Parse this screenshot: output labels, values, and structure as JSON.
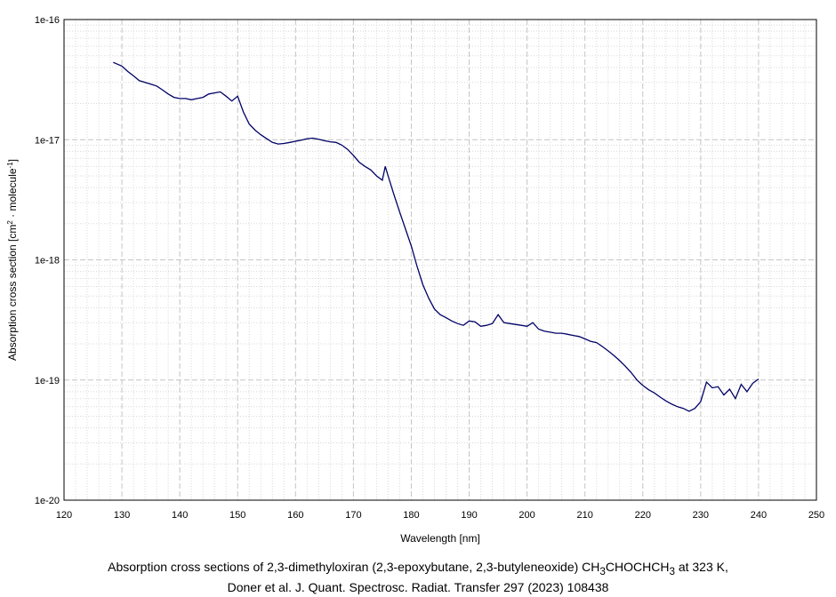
{
  "caption": {
    "line1_prefix": "Absorption cross sections of 2,3-dimethyloxiran (2,3-epoxybutane, 2,3-butyleneoxide) CH",
    "sub1": "3",
    "line1_mid": "CHOCHCH",
    "sub2": "3",
    "line1_suffix": " at 323 K,",
    "line2": "Doner et al. J. Quant. Spectrosc. Radiat. Transfer 297 (2023) 108438"
  },
  "chart_data": {
    "type": "line",
    "title": "",
    "xlabel": "Wavelength [nm]",
    "ylabel_prefix": "Absorption cross section [cm",
    "ylabel_sup1": "2",
    "ylabel_mid": " · molecule",
    "ylabel_sup2": "-1",
    "ylabel_suffix": "]",
    "xlim": [
      120,
      250
    ],
    "ylim": [
      1e-20,
      1e-16
    ],
    "yscale": "log",
    "grid": true,
    "line_color": "#000066",
    "x_ticks": [
      "120",
      "130",
      "140",
      "150",
      "160",
      "170",
      "180",
      "190",
      "200",
      "210",
      "220",
      "230",
      "240",
      "250"
    ],
    "y_ticks": [
      "1e-20",
      "1e-19",
      "1e-18",
      "1e-17",
      "1e-16"
    ],
    "series": [
      {
        "x": [
          128.5,
          130,
          131,
          132,
          133,
          134,
          135,
          136,
          137,
          138,
          139,
          140,
          141,
          142,
          143,
          144,
          145,
          146,
          147,
          148,
          149,
          150,
          151,
          152,
          153,
          154,
          155,
          156,
          157,
          158,
          159,
          160,
          161,
          162,
          163,
          164,
          165,
          166,
          167,
          168,
          169,
          170,
          171,
          172,
          173,
          174,
          175,
          175.5,
          176,
          177,
          178,
          179,
          180,
          181,
          182,
          183,
          184,
          185,
          186,
          187,
          188,
          189,
          190,
          191,
          192,
          193,
          194,
          195,
          196,
          197,
          198,
          199,
          200,
          201,
          202,
          203,
          204,
          205,
          206,
          207,
          208,
          209,
          210,
          211,
          212,
          213,
          214,
          215,
          216,
          217,
          218,
          219,
          220,
          221,
          222,
          223,
          224,
          225,
          226,
          227,
          228,
          229,
          230,
          231,
          232,
          233,
          234,
          235,
          236,
          237,
          238,
          239,
          240
        ],
        "y": [
          4.4e-17,
          4.1e-17,
          3.7e-17,
          3.4e-17,
          3.1e-17,
          3e-17,
          2.9e-17,
          2.8e-17,
          2.6e-17,
          2.4e-17,
          2.25e-17,
          2.2e-17,
          2.2e-17,
          2.15e-17,
          2.2e-17,
          2.25e-17,
          2.4e-17,
          2.45e-17,
          2.5e-17,
          2.3e-17,
          2.1e-17,
          2.3e-17,
          1.7e-17,
          1.35e-17,
          1.2e-17,
          1.1e-17,
          1.02e-17,
          9.5e-18,
          9.2e-18,
          9.3e-18,
          9.5e-18,
          9.7e-18,
          9.9e-18,
          1.02e-17,
          1.03e-17,
          1.01e-17,
          9.8e-18,
          9.6e-18,
          9.5e-18,
          9e-18,
          8.3e-18,
          7.4e-18,
          6.5e-18,
          6e-18,
          5.6e-18,
          5e-18,
          4.6e-18,
          6e-18,
          5e-18,
          3.5e-18,
          2.5e-18,
          1.8e-18,
          1.3e-18,
          8.8e-19,
          6.2e-19,
          4.8e-19,
          3.9e-19,
          3.5e-19,
          3.3e-19,
          3.1e-19,
          2.95e-19,
          2.85e-19,
          3.1e-19,
          3.05e-19,
          2.8e-19,
          2.85e-19,
          2.95e-19,
          3.5e-19,
          3e-19,
          2.95e-19,
          2.9e-19,
          2.85e-19,
          2.8e-19,
          3e-19,
          2.65e-19,
          2.55e-19,
          2.5e-19,
          2.45e-19,
          2.45e-19,
          2.4e-19,
          2.35e-19,
          2.3e-19,
          2.2e-19,
          2.1e-19,
          2.05e-19,
          1.9e-19,
          1.75e-19,
          1.6e-19,
          1.45e-19,
          1.3e-19,
          1.15e-19,
          1e-19,
          9e-20,
          8.3e-20,
          7.8e-20,
          7.2e-20,
          6.7e-20,
          6.3e-20,
          6e-20,
          5.8e-20,
          5.5e-20,
          5.8e-20,
          6.6e-20,
          9.6e-20,
          8.6e-20,
          8.8e-20,
          7.5e-20,
          8.4e-20,
          7e-20,
          9.2e-20,
          8e-20,
          9.4e-20,
          1.02e-19
        ]
      }
    ]
  }
}
